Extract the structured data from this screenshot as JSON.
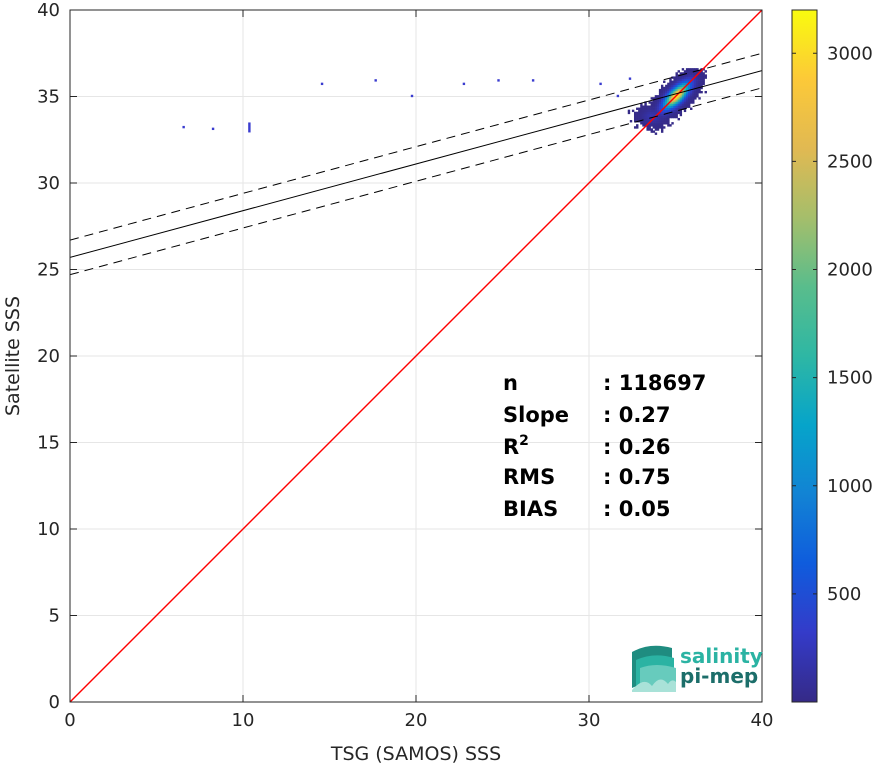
{
  "chart_data": {
    "type": "heatmap",
    "xlabel": "TSG (SAMOS) SSS",
    "ylabel": "Satellite SSS",
    "xlim": [
      0,
      40
    ],
    "ylim": [
      0,
      40
    ],
    "x_ticks": [
      0,
      10,
      20,
      30,
      40
    ],
    "y_ticks": [
      0,
      5,
      10,
      15,
      20,
      25,
      30,
      35,
      40
    ],
    "grid": true,
    "colorbar": {
      "range": [
        0,
        3200
      ],
      "ticks": [
        500,
        1000,
        1500,
        2000,
        2500,
        3000
      ],
      "colormap": "parula"
    },
    "lines": [
      {
        "kind": "one-to-one",
        "color": "#ff0000",
        "slope": 1.0,
        "intercept": 0.0
      },
      {
        "kind": "regression",
        "color": "#000000",
        "dash": "solid",
        "slope": 0.27,
        "intercept": 25.7
      },
      {
        "kind": "regression-upper",
        "color": "#000000",
        "dash": "dashed",
        "slope": 0.27,
        "intercept": 26.7
      },
      {
        "kind": "regression-lower",
        "color": "#000000",
        "dash": "dashed",
        "slope": 0.27,
        "intercept": 24.7
      }
    ],
    "scatter_outliers": [
      {
        "x": 6.5,
        "y": 33.3
      },
      {
        "x": 8.2,
        "y": 33.2
      },
      {
        "x": 10.3,
        "y": 33.5
      },
      {
        "x": 14.5,
        "y": 35.8
      },
      {
        "x": 17.6,
        "y": 36.0
      },
      {
        "x": 19.7,
        "y": 35.1
      },
      {
        "x": 22.7,
        "y": 35.8
      },
      {
        "x": 24.7,
        "y": 36.0
      },
      {
        "x": 26.7,
        "y": 36.0
      },
      {
        "x": 30.6,
        "y": 35.8
      },
      {
        "x": 31.6,
        "y": 35.1
      },
      {
        "x": 32.3,
        "y": 36.1
      }
    ],
    "dense_cluster": {
      "center_x": 35.0,
      "center_y": 35.0,
      "x_range": [
        32.0,
        36.7
      ],
      "y_range": [
        32.8,
        36.6
      ],
      "peak_count": 3200
    },
    "stats": [
      {
        "label": "n",
        "value": ": 118697"
      },
      {
        "label": "Slope",
        "value": ": 0.27"
      },
      {
        "label": "R",
        "label_sup": "2",
        "value": ": 0.26"
      },
      {
        "label": "RMS",
        "value": ": 0.75"
      },
      {
        "label": "BIAS",
        "value": ": 0.05"
      }
    ]
  },
  "logo": {
    "line1": "salinity",
    "line2": "pi-mep",
    "color1": "#2bb3a3",
    "color2": "#1c6e6a"
  }
}
